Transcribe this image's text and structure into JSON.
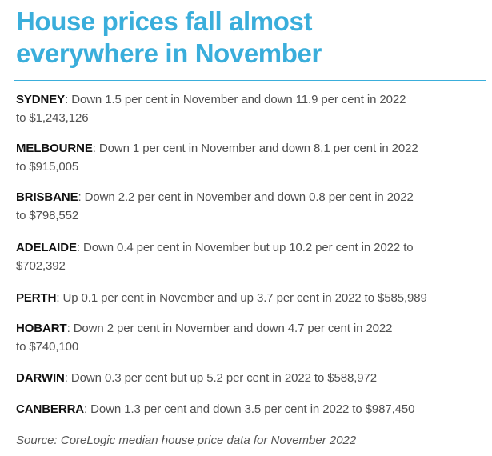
{
  "title_line1": "House prices fall almost",
  "title_line2": "everywhere in November",
  "entries": [
    {
      "city": "SYDNEY",
      "line1": ": Down 1.5 per cent in November and down 11.9 per cent in 2022",
      "line2": "to $1,243,126"
    },
    {
      "city": "MELBOURNE",
      "line1": ": Down 1 per cent in November and down 8.1 per cent in 2022",
      "line2": "to $915,005"
    },
    {
      "city": "BRISBANE",
      "line1": ": Down 2.2 per cent in November and down 0.8 per cent in 2022",
      "line2": "to $798,552"
    },
    {
      "city": "ADELAIDE",
      "line1": ": Down 0.4 per cent in November but up 10.2 per cent in 2022 to",
      "line2": "$702,392"
    },
    {
      "city": "PERTH",
      "line1": ": Up 0.1 per cent in November and up 3.7 per cent in 2022 to $585,989"
    },
    {
      "city": "HOBART",
      "line1": ": Down 2 per cent in November and down 4.7 per cent in 2022",
      "line2": "to $740,100"
    },
    {
      "city": "DARWIN",
      "line1": ": Down 0.3 per cent but up 5.2 per cent in 2022 to $588,972"
    },
    {
      "city": "CANBERRA",
      "line1": ": Down 1.3 per cent and down 3.5 per cent in 2022 to $987,450"
    }
  ],
  "source": "Source: CoreLogic median house price data for November 2022",
  "colors": {
    "title": "#3aaedb",
    "rule": "#3aaedb",
    "city": "#111111",
    "body_text": "#505050"
  }
}
